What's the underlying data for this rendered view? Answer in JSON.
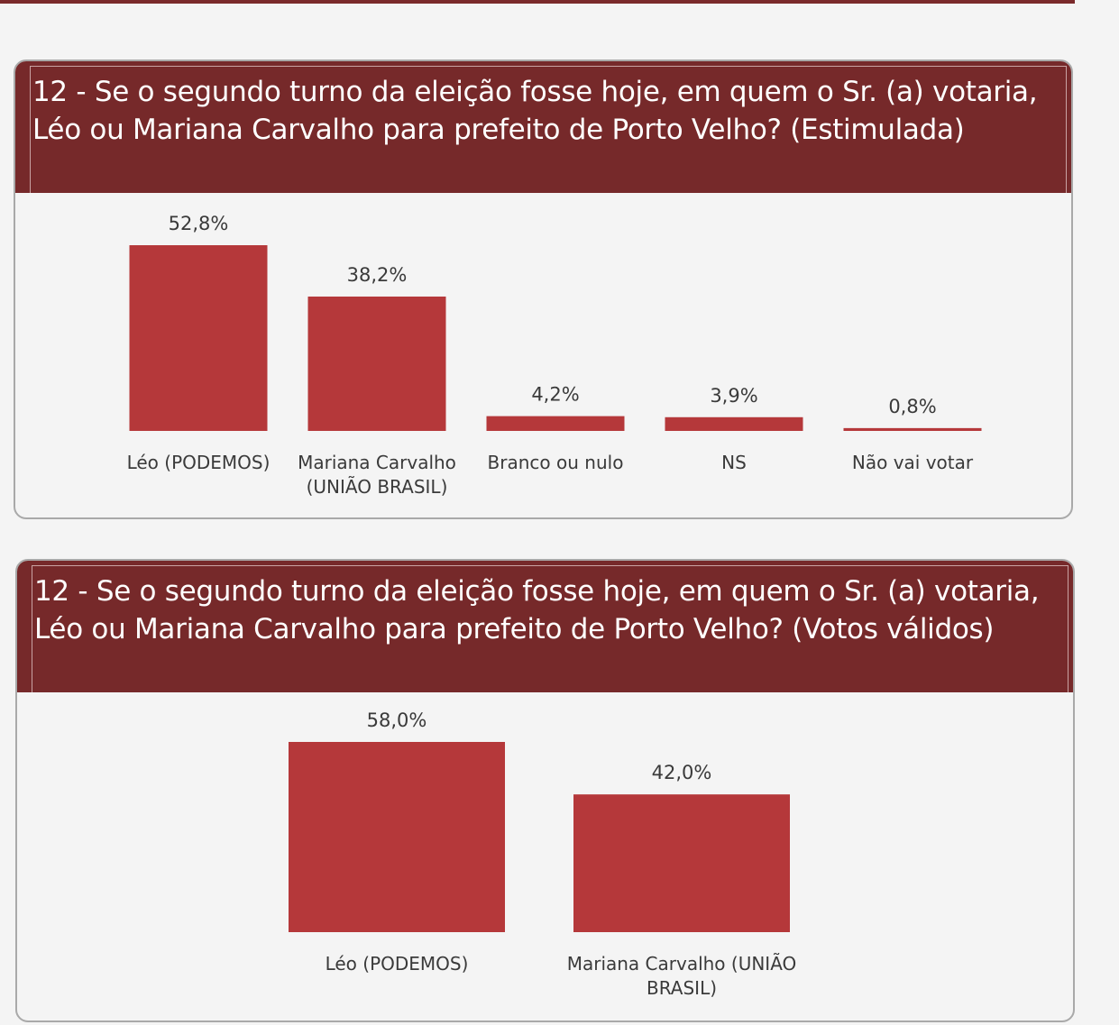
{
  "colors": {
    "header_background": "#76292a",
    "bar": "#b5383a",
    "panel_background": "#f4f4f4",
    "text": "#3a3a3a"
  },
  "panels": [
    {
      "title": "12 - Se o segundo turno da eleição fosse hoje, em quem o Sr. (a) votaria, Léo ou Mariana Carvalho para prefeito de Porto Velho? (Estimulada)"
    },
    {
      "title": "12 - Se o segundo turno da eleição fosse hoje, em quem o Sr. (a) votaria, Léo ou Mariana Carvalho para prefeito de Porto Velho? (Votos válidos)"
    }
  ],
  "chart_data": [
    {
      "type": "bar",
      "title": "12 - Se o segundo turno da eleição fosse hoje, em quem o Sr. (a) votaria, Léo ou Mariana Carvalho para prefeito de Porto Velho? (Estimulada)",
      "categories": [
        [
          "Léo (PODEMOS)"
        ],
        [
          "Mariana Carvalho",
          "(UNIÃO BRASIL)"
        ],
        [
          "Branco ou nulo"
        ],
        [
          "NS"
        ],
        [
          "Não vai votar"
        ]
      ],
      "values": [
        52.8,
        38.2,
        4.2,
        3.9,
        0.8
      ],
      "value_labels": [
        "52,8%",
        "38,2%",
        "4,2%",
        "3,9%",
        "0,8%"
      ],
      "unit": "%",
      "ylim": [
        0,
        52.8
      ],
      "grid": false,
      "legend": "none"
    },
    {
      "type": "bar",
      "title": "12 - Se o segundo turno da eleição fosse hoje, em quem o Sr. (a) votaria, Léo ou Mariana Carvalho para prefeito de Porto Velho? (Votos válidos)",
      "categories": [
        [
          "Léo (PODEMOS)"
        ],
        [
          "Mariana Carvalho (UNIÃO",
          "BRASIL)"
        ]
      ],
      "values": [
        58.0,
        42.0
      ],
      "value_labels": [
        "58,0%",
        "42,0%"
      ],
      "unit": "%",
      "ylim": [
        0,
        58.0
      ],
      "grid": false,
      "legend": "none"
    }
  ]
}
